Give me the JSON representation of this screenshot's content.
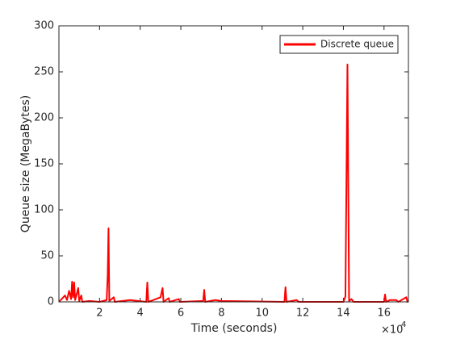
{
  "chart_data": {
    "type": "line",
    "xlabel": "Time (seconds)",
    "ylabel": "Queue size (MegaBytes)",
    "x_multiplier": {
      "base": "×10",
      "exponent": "4"
    },
    "x": [
      0,
      3000,
      4000,
      5000,
      6000,
      6500,
      7000,
      7500,
      8000,
      9500,
      10000,
      11000,
      11500,
      15000,
      20000,
      23500,
      24000,
      24400,
      24800,
      27000,
      27500,
      35000,
      43000,
      43500,
      44000,
      46500,
      50000,
      51000,
      51500,
      54000,
      54500,
      59000,
      59500,
      71000,
      71500,
      72000,
      77000,
      80000,
      111000,
      111500,
      112000,
      117000,
      118000,
      140000,
      141000,
      142000,
      142800,
      144000,
      145000,
      160000,
      160500,
      161000,
      163000,
      166000,
      167000,
      171000,
      171500,
      172000
    ],
    "series": [
      {
        "name": "Discrete queue",
        "color": "#ff0000",
        "values": [
          0,
          7,
          2,
          12,
          3,
          22,
          5,
          21,
          2,
          15,
          1,
          7,
          0,
          1,
          0,
          2,
          28,
          80,
          1,
          5,
          0,
          2,
          0,
          21,
          0,
          2,
          5,
          15,
          0,
          4,
          0,
          3,
          0,
          1,
          13,
          0,
          2,
          1,
          0,
          16,
          0,
          2,
          0,
          0,
          6,
          258,
          1,
          3,
          0,
          0,
          8,
          0,
          2,
          2,
          0,
          5,
          0,
          1
        ]
      }
    ],
    "xlim": [
      0,
      172000
    ],
    "ylim": [
      0,
      300
    ],
    "xticks": [
      {
        "value": 20000,
        "label": "2"
      },
      {
        "value": 40000,
        "label": "4"
      },
      {
        "value": 60000,
        "label": "6"
      },
      {
        "value": 80000,
        "label": "8"
      },
      {
        "value": 100000,
        "label": "10"
      },
      {
        "value": 120000,
        "label": "12"
      },
      {
        "value": 140000,
        "label": "14"
      },
      {
        "value": 160000,
        "label": "16"
      }
    ],
    "yticks": [
      0,
      50,
      100,
      150,
      200,
      250,
      300
    ],
    "grid": false,
    "legend": "top-right"
  }
}
